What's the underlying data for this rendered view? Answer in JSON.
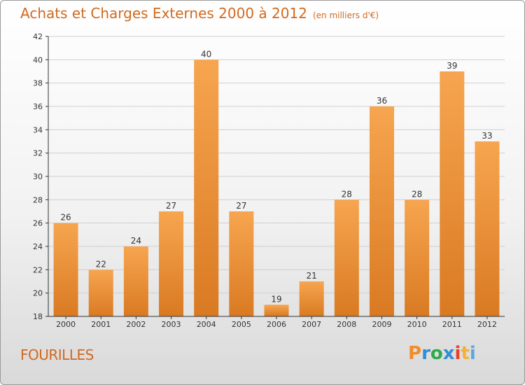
{
  "header": {
    "title": "Achats et Charges Externes 2000 à 2012",
    "unit": "(en milliers d'€)"
  },
  "footer": {
    "place": "FOURILLES",
    "brand_letters": [
      "P",
      "r",
      "o",
      "x",
      "i",
      "t",
      "i"
    ],
    "brand_colors": [
      "#f28c28",
      "#2f8fd6",
      "#2faa4a",
      "#2f8fd6",
      "#e8402a",
      "#f2b23a",
      "#5aa8e0"
    ]
  },
  "colors": {
    "title": "#d2691e",
    "bar_top": "#f7a550",
    "bar_bottom": "#d97a22",
    "grid": "#cfcfcf",
    "axis": "#333333"
  },
  "chart_data": {
    "type": "bar",
    "categories": [
      "2000",
      "2001",
      "2002",
      "2003",
      "2004",
      "2005",
      "2006",
      "2007",
      "2008",
      "2009",
      "2010",
      "2011",
      "2012"
    ],
    "values": [
      26,
      22,
      24,
      27,
      40,
      27,
      19,
      21,
      28,
      36,
      28,
      39,
      33
    ],
    "ylim": [
      18,
      42
    ],
    "yticks": [
      18,
      20,
      22,
      24,
      26,
      28,
      30,
      32,
      34,
      36,
      38,
      40,
      42
    ],
    "grid": true,
    "xlabel": "",
    "ylabel": ""
  }
}
